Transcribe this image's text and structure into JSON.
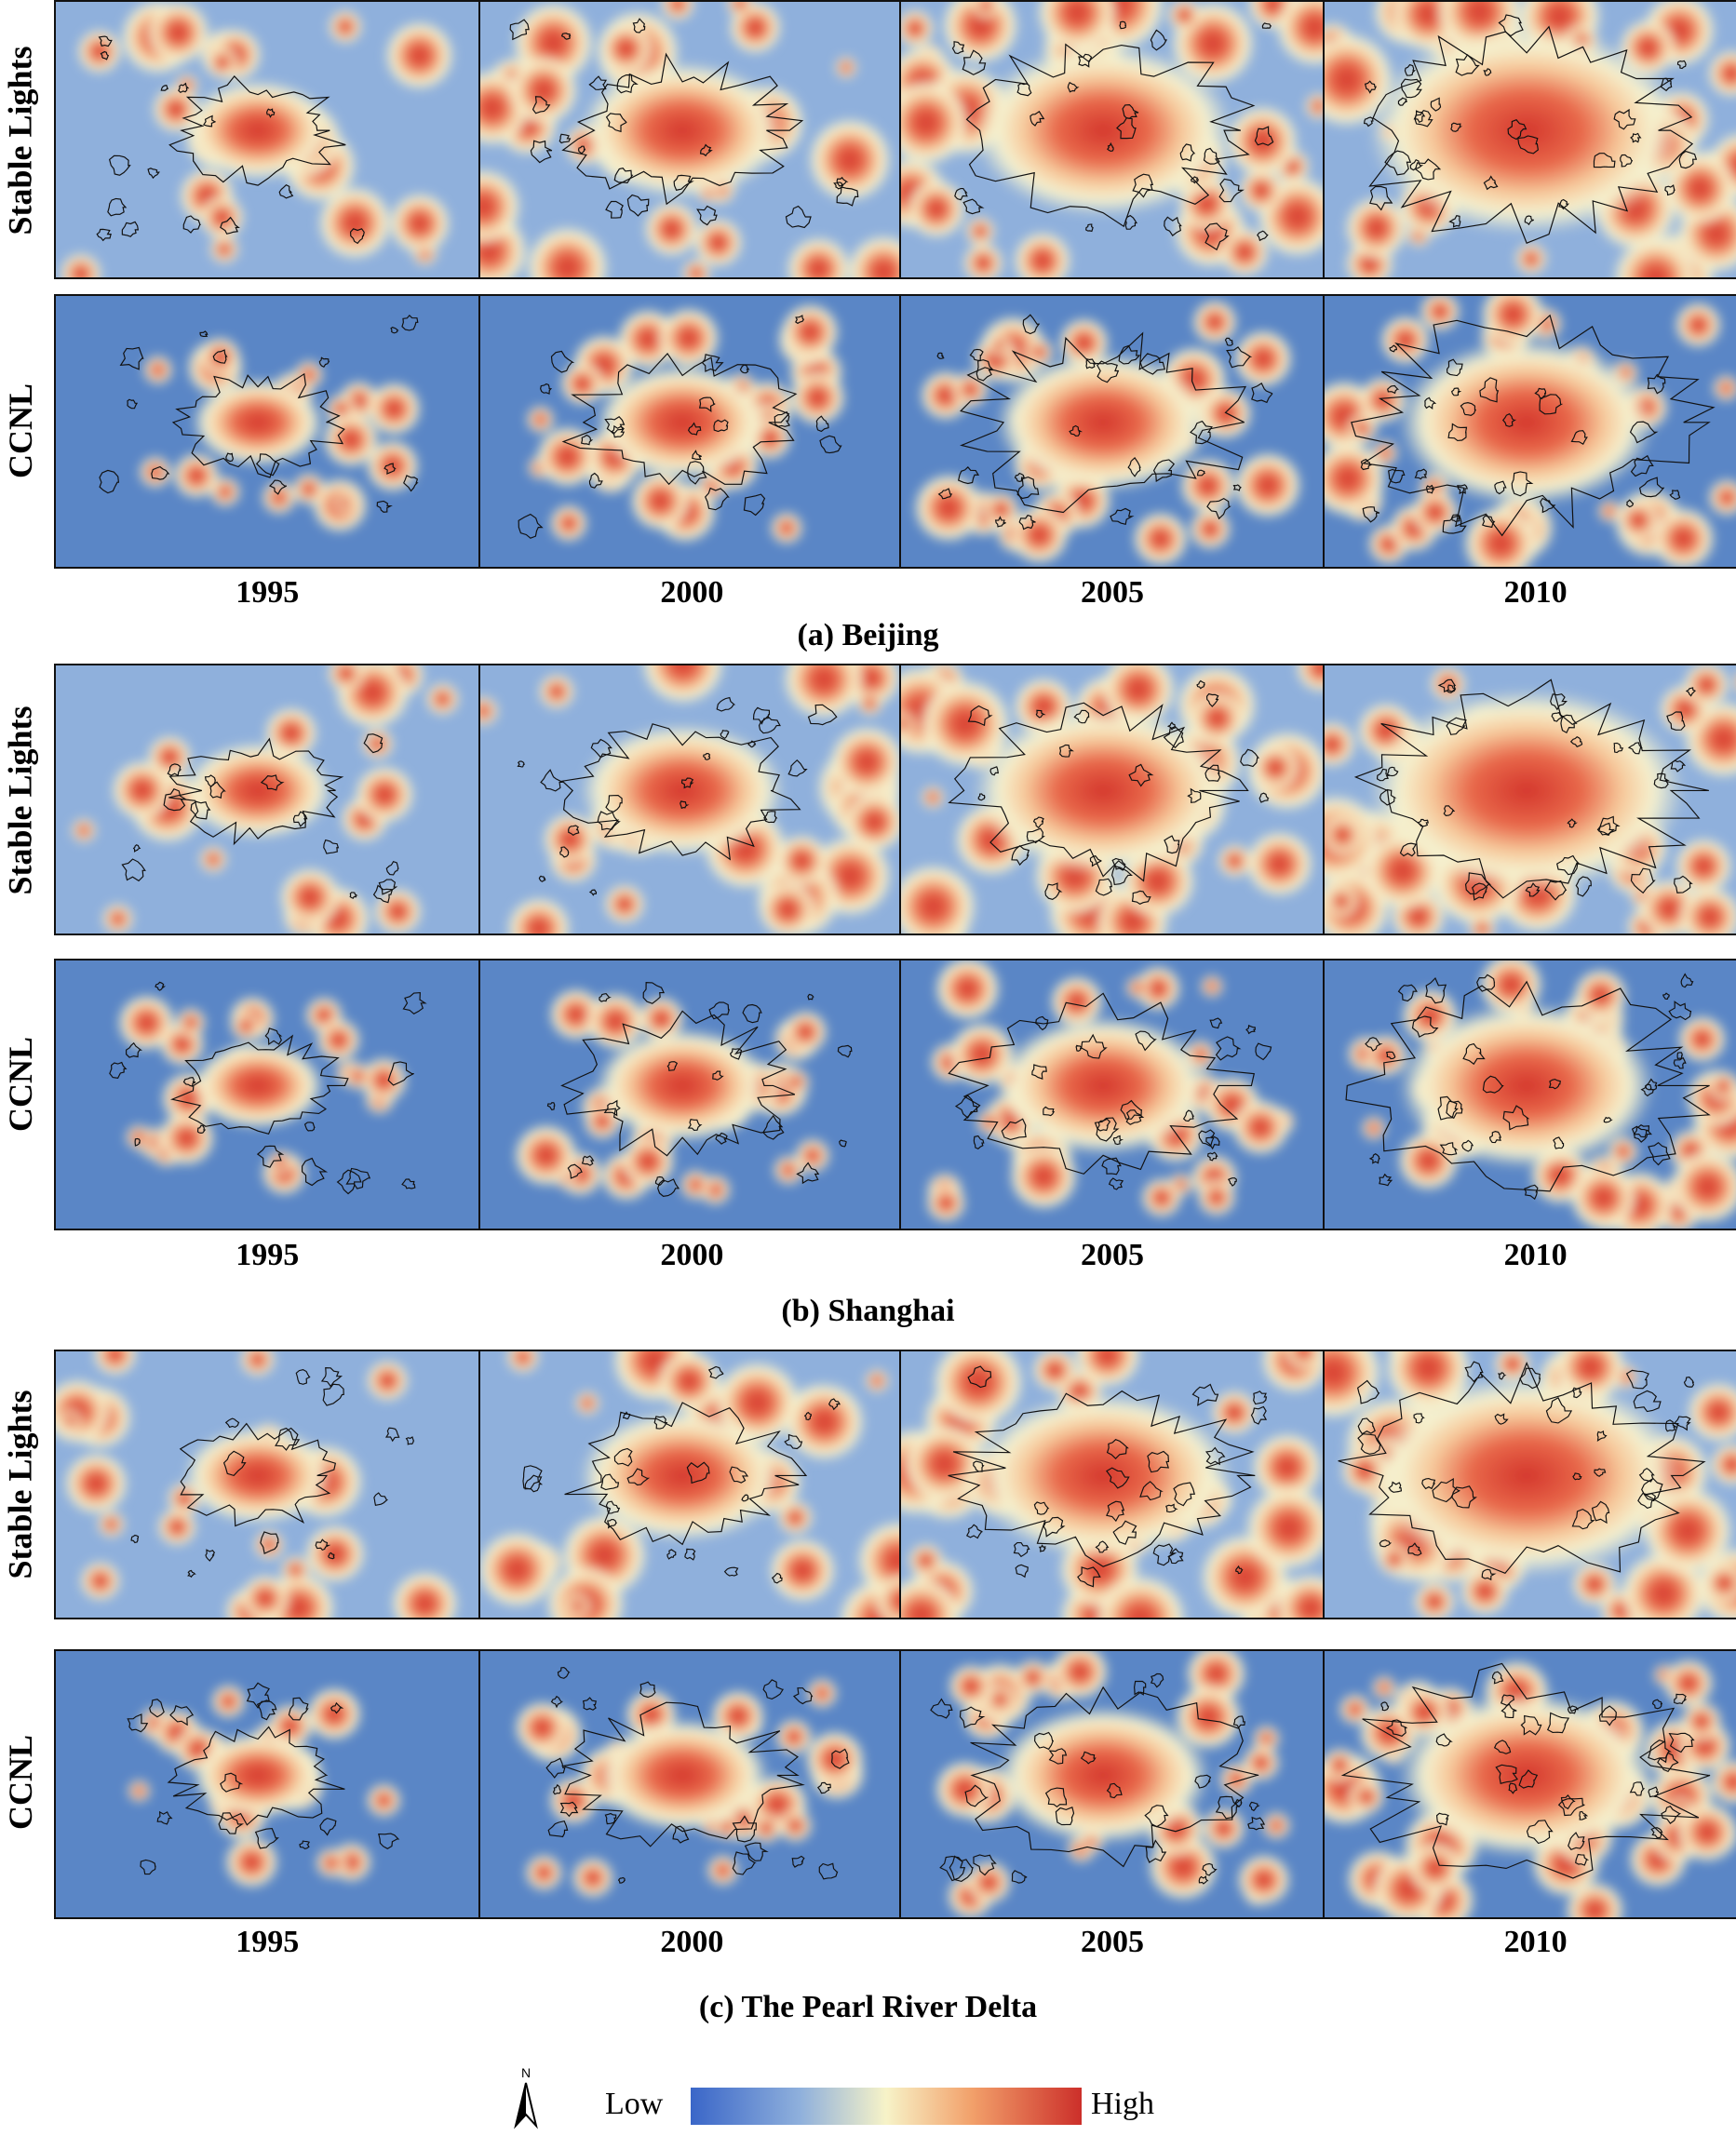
{
  "row_labels": {
    "stable": "Stable Lights",
    "ccnl": "CCNL"
  },
  "years": [
    "1995",
    "2000",
    "2005",
    "2010"
  ],
  "sections": [
    {
      "caption": "(a)  Beijing"
    },
    {
      "caption": "(b)  Shanghai"
    },
    {
      "caption": "(c) The Pearl River Delta"
    }
  ],
  "legend": {
    "low": "Low",
    "high": "High",
    "north": "N"
  },
  "colors": {
    "low": "#3a66c8",
    "mid": "#f7f3c8",
    "high": "#cc2f2a",
    "outline": "#111111"
  }
}
